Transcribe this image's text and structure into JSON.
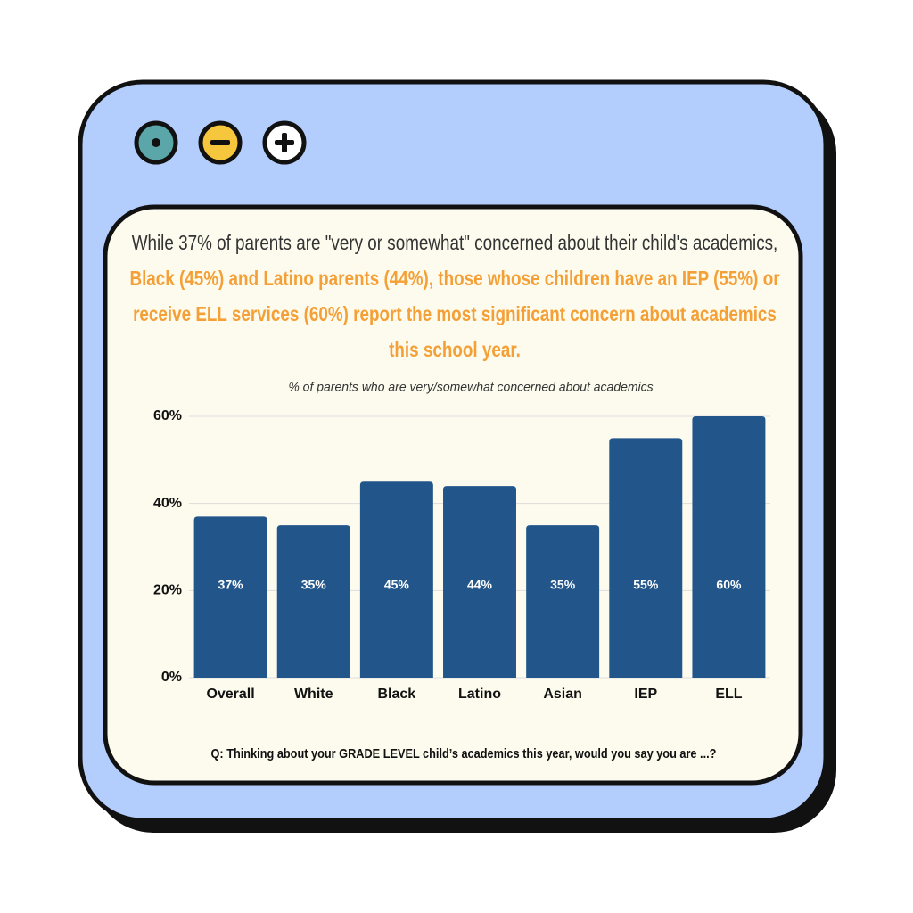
{
  "headline": {
    "lead": "While 37% of parents are \"very or somewhat\" concerned about their child's academics, ",
    "highlight": "Black (45%) and Latino parents (44%), those whose children have an IEP (55%) or receive ELL services (60%) report the most significant concern about academics this school year."
  },
  "question": "Q: Thinking about your GRADE LEVEL child’s academics this year, would you say you are  ...?",
  "chart_data": {
    "type": "bar",
    "subtitle": "% of parents who are very/somewhat concerned about academics",
    "categories": [
      "Overall",
      "White",
      "Black",
      "Latino",
      "Asian",
      "IEP",
      "ELL"
    ],
    "values": [
      37,
      35,
      45,
      44,
      35,
      55,
      60
    ],
    "value_labels": [
      "37%",
      "35%",
      "45%",
      "44%",
      "35%",
      "55%",
      "60%"
    ],
    "color": "#22558a",
    "ylim": [
      0,
      60
    ],
    "yticks": [
      {
        "value": 0,
        "label": "0%"
      },
      {
        "value": 20,
        "label": "20%"
      },
      {
        "value": 40,
        "label": "40%"
      },
      {
        "value": 60,
        "label": "60%"
      }
    ],
    "grid": true
  }
}
